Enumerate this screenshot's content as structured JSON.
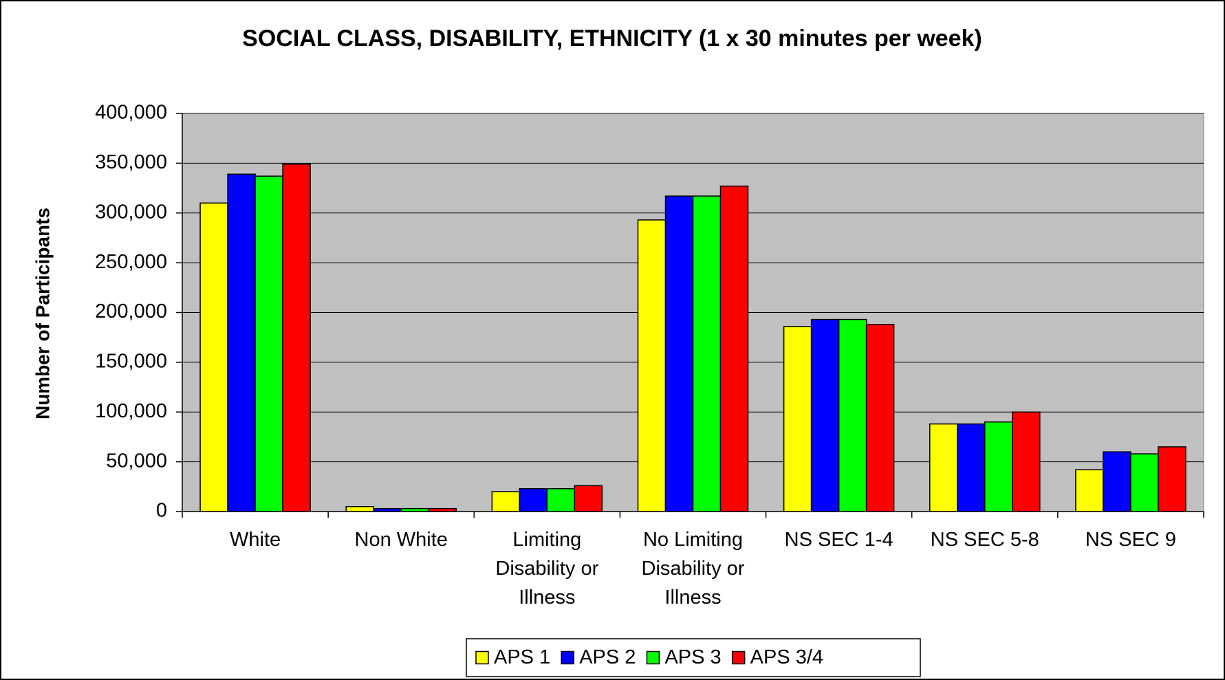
{
  "chart_data": {
    "type": "bar",
    "title": "SOCIAL CLASS, DISABILITY, ETHNICITY (1 x 30 minutes per week)",
    "y_label": "Number of Participants",
    "categories": [
      "White",
      "Non White",
      "Limiting Disability or Illness",
      "No Limiting Disability or Illness",
      "NS SEC 1-4",
      "NS SEC 5-8",
      "NS SEC 9"
    ],
    "series": [
      {
        "name": "APS 1",
        "color": "#ffff00",
        "values": [
          310000,
          5000,
          20000,
          293000,
          186000,
          88000,
          42000
        ]
      },
      {
        "name": "APS 2",
        "color": "#0000ff",
        "values": [
          339000,
          3000,
          23000,
          317000,
          193000,
          88000,
          60000
        ]
      },
      {
        "name": "APS 3",
        "color": "#00ff00",
        "values": [
          337000,
          3000,
          23000,
          317000,
          193000,
          90000,
          58000
        ]
      },
      {
        "name": "APS 3/4",
        "color": "#ff0000",
        "values": [
          349000,
          3000,
          26000,
          327000,
          188000,
          100000,
          65000
        ]
      }
    ],
    "ylim": [
      0,
      400000
    ],
    "yticks": [
      0,
      {
        "value": 50000,
        "label": "50,000"
      },
      {
        "value": 100000,
        "label": "100,000"
      },
      {
        "value": 150000,
        "label": "150,000"
      },
      {
        "value": 200000,
        "label": "200,000"
      },
      {
        "value": 250000,
        "label": "250,000"
      },
      {
        "value": 300000,
        "label": "300,000"
      },
      {
        "value": 350000,
        "label": "350,000"
      },
      {
        "value": 400000,
        "label": "400,000"
      }
    ],
    "grid": true,
    "legend": "bottom"
  }
}
